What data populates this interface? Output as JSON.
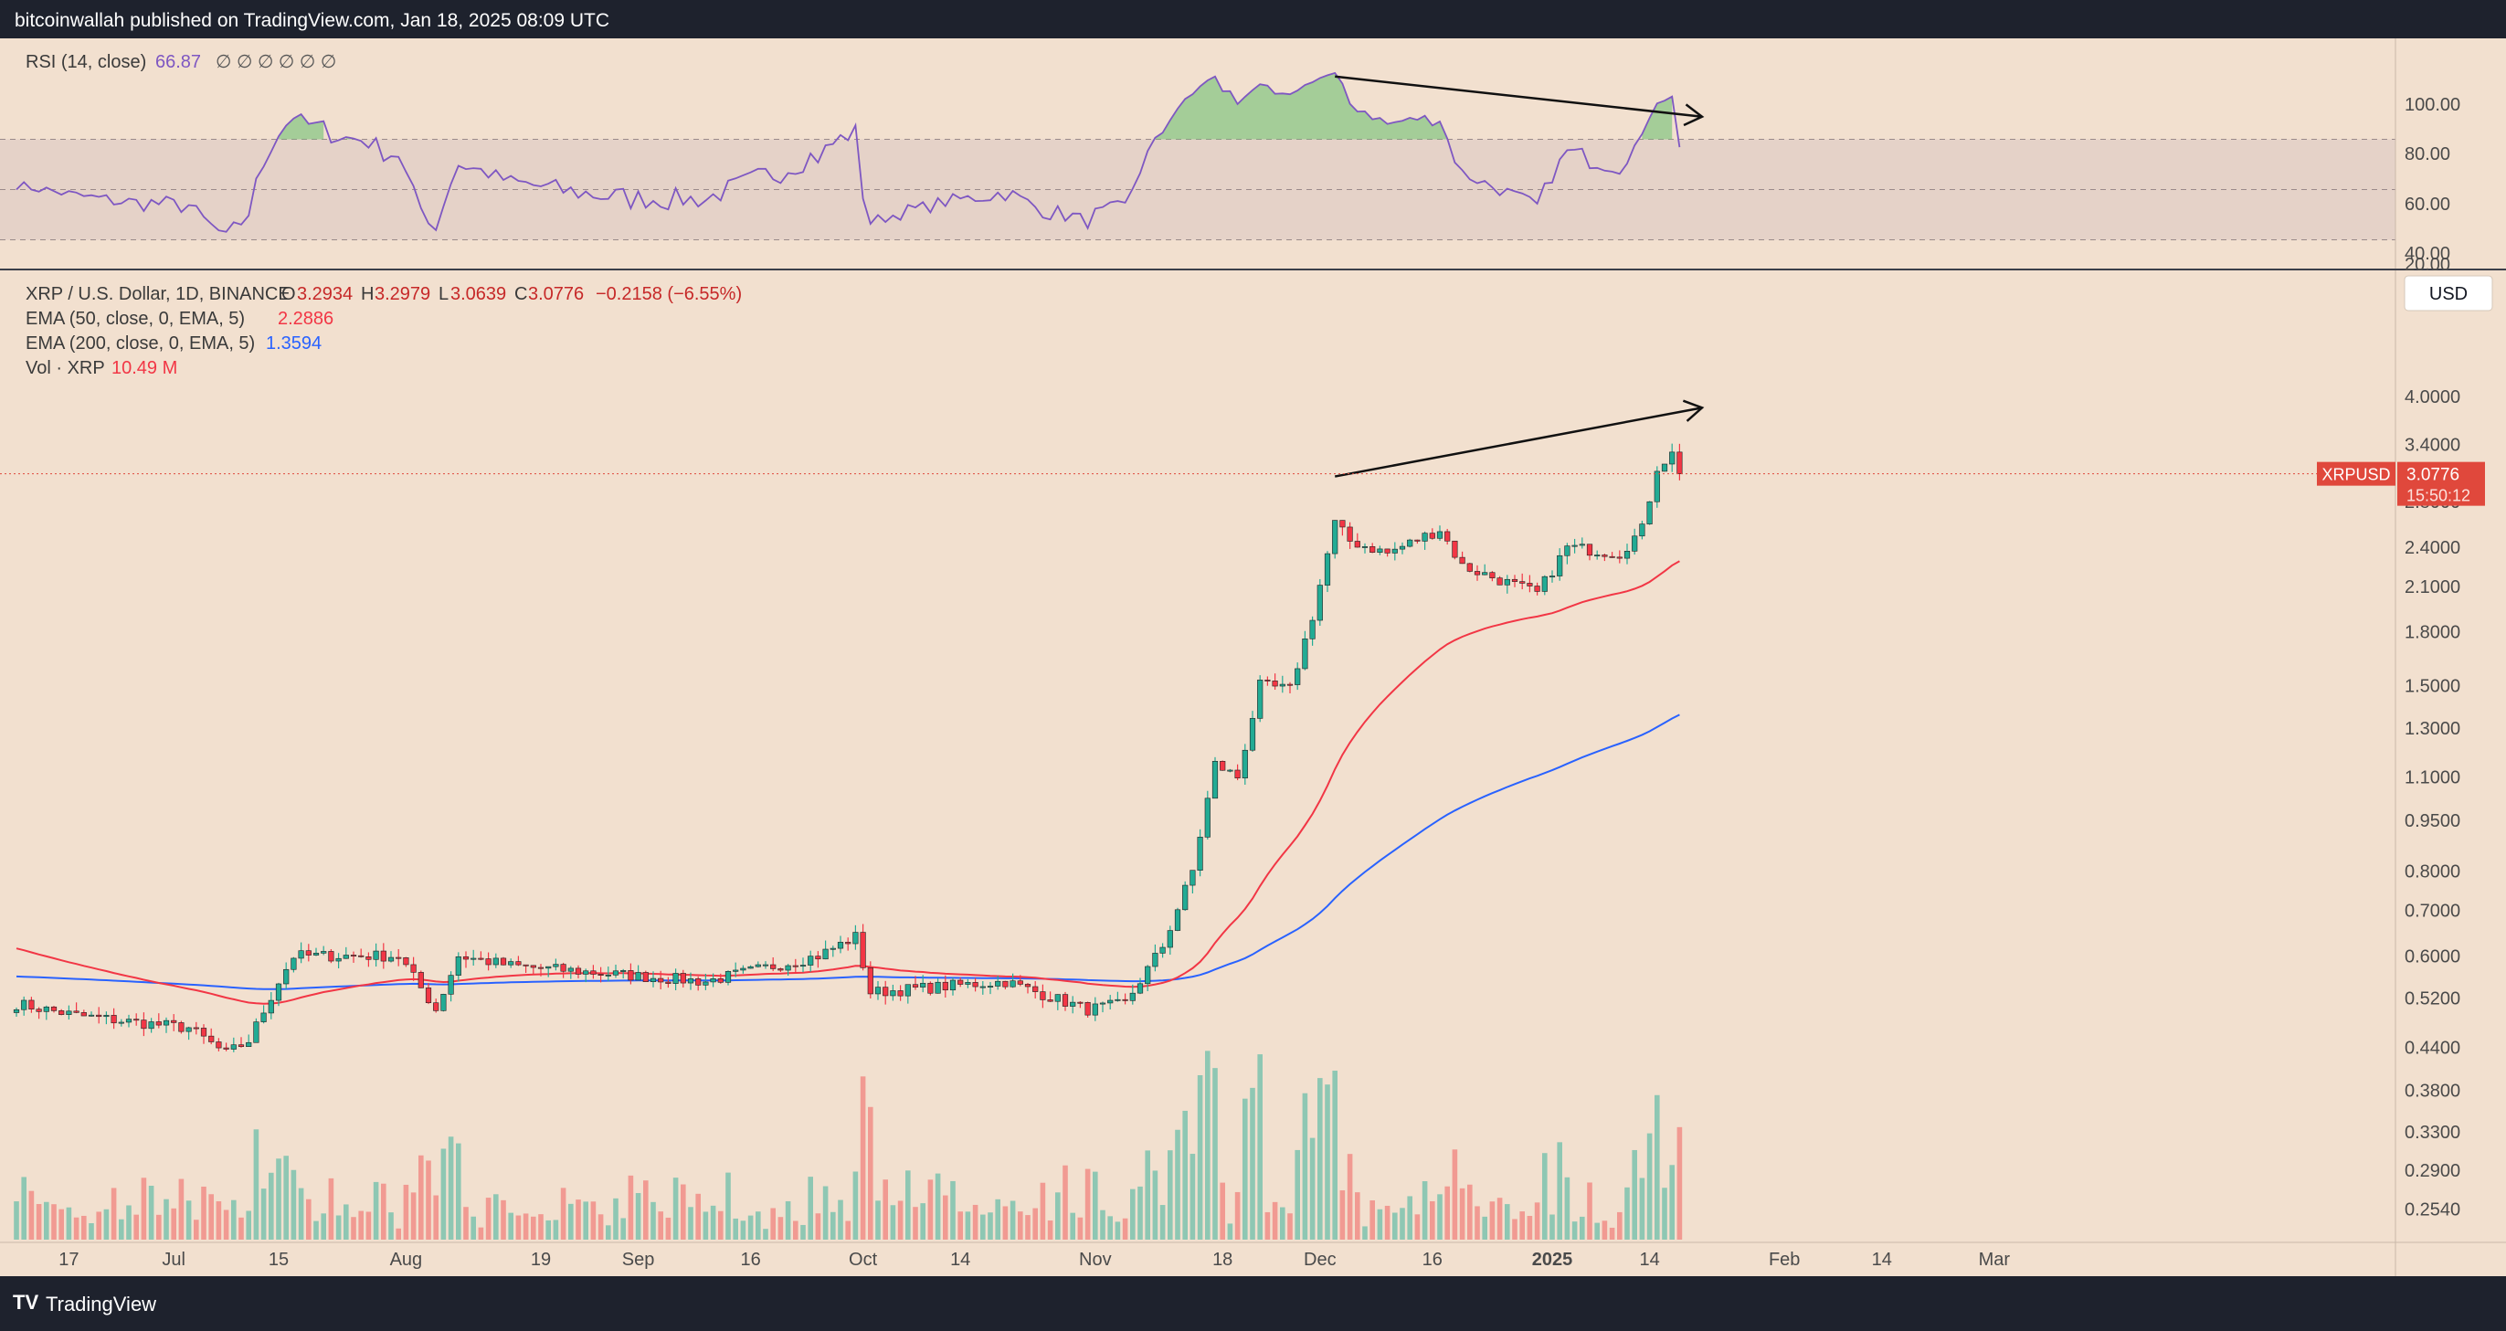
{
  "header": {
    "published": "bitcoinwallah published on TradingView.com, Jan 18, 2025 08:09 UTC"
  },
  "footer": {
    "brand": "TradingView",
    "logo_icon": "tradingview-logo-icon"
  },
  "colors": {
    "background": "#f2e0cf",
    "up": "#22ab94",
    "down": "#f23645",
    "vol_up": "#8ec7b3",
    "vol_down": "#f19a92",
    "ema50": "#f23645",
    "ema200": "#2962ff",
    "rsi": "#7e57c2",
    "rsi_band": "#e5d2c8",
    "price_tag": "#e0483c"
  },
  "rsi_panel": {
    "label": "RSI (14, close)",
    "value": "66.87",
    "nan_marks": "∅ ∅ ∅ ∅ ∅ ∅",
    "y_ticks": [
      "100.00",
      "80.00",
      "60.00",
      "40.00",
      "20.00"
    ],
    "bands": [
      70,
      50,
      30
    ]
  },
  "price_panel": {
    "symbol_line": "XRP / U.S. Dollar, 1D, BINANCE",
    "ohlc": {
      "o_label": "O",
      "o": "3.2934",
      "h_label": "H",
      "h": "3.2979",
      "l_label": "L",
      "l": "3.0639",
      "c_label": "C",
      "c": "3.0776",
      "change": "−0.2158 (−6.55%)"
    },
    "ema50": {
      "label": "EMA (50, close, 0, EMA, 5)",
      "value": "2.2886"
    },
    "ema200": {
      "label": "EMA (200, close, 0, EMA, 5)",
      "value": "1.3594"
    },
    "vol": {
      "label": "Vol · XRP",
      "value": "10.49 M"
    },
    "currency": "USD",
    "price_tag": {
      "symbol": "XRPUSD",
      "price": "3.0776",
      "countdown": "15:50:12"
    },
    "y_ticks": [
      "4.0000",
      "3.4000",
      "2.8000",
      "2.4000",
      "2.1000",
      "1.8000",
      "1.5000",
      "1.3000",
      "1.1000",
      "0.9500",
      "0.8000",
      "0.7000",
      "0.6000",
      "0.5200",
      "0.4400",
      "0.3800",
      "0.3300",
      "0.2900",
      "0.2540"
    ]
  },
  "x_axis": {
    "labels": [
      "17",
      "Jul",
      "15",
      "Aug",
      "19",
      "Sep",
      "16",
      "Oct",
      "14",
      "Nov",
      "18",
      "Dec",
      "16",
      "2025",
      "14",
      "Feb",
      "14",
      "Mar"
    ]
  },
  "chart_data": {
    "type": "candlestick",
    "title": "XRP / U.S. Dollar, 1D, BINANCE",
    "x_range": [
      "2024-06-10",
      "2025-03-20"
    ],
    "price_scale": "log",
    "ylim": [
      0.24,
      4.7
    ],
    "series": [
      {
        "name": "XRPUSD",
        "kind": "candles",
        "ohlc_keypoints": [
          {
            "date": "2024-06-10",
            "price": 0.51
          },
          {
            "date": "2024-06-18",
            "price": 0.49
          },
          {
            "date": "2024-06-25",
            "price": 0.48
          },
          {
            "date": "2024-07-03",
            "price": 0.47
          },
          {
            "date": "2024-07-08",
            "price": 0.43
          },
          {
            "date": "2024-07-11",
            "price": 0.45
          },
          {
            "date": "2024-07-15",
            "price": 0.55
          },
          {
            "date": "2024-07-17",
            "price": 0.6
          },
          {
            "date": "2024-07-31",
            "price": 0.6
          },
          {
            "date": "2024-08-05",
            "price": 0.5
          },
          {
            "date": "2024-08-08",
            "price": 0.6
          },
          {
            "date": "2024-08-15",
            "price": 0.58
          },
          {
            "date": "2024-09-01",
            "price": 0.56
          },
          {
            "date": "2024-09-10",
            "price": 0.55
          },
          {
            "date": "2024-09-25",
            "price": 0.6
          },
          {
            "date": "2024-09-30",
            "price": 0.64
          },
          {
            "date": "2024-10-02",
            "price": 0.53
          },
          {
            "date": "2024-10-20",
            "price": 0.55
          },
          {
            "date": "2024-10-31",
            "price": 0.5
          },
          {
            "date": "2024-11-05",
            "price": 0.51
          },
          {
            "date": "2024-11-10",
            "price": 0.62
          },
          {
            "date": "2024-11-14",
            "price": 0.8
          },
          {
            "date": "2024-11-17",
            "price": 1.15
          },
          {
            "date": "2024-11-20",
            "price": 1.1
          },
          {
            "date": "2024-11-23",
            "price": 1.5
          },
          {
            "date": "2024-11-27",
            "price": 1.48
          },
          {
            "date": "2024-11-30",
            "price": 1.9
          },
          {
            "date": "2024-12-03",
            "price": 2.6
          },
          {
            "date": "2024-12-05",
            "price": 2.45
          },
          {
            "date": "2024-12-10",
            "price": 2.35
          },
          {
            "date": "2024-12-17",
            "price": 2.55
          },
          {
            "date": "2024-12-20",
            "price": 2.25
          },
          {
            "date": "2024-12-30",
            "price": 2.05
          },
          {
            "date": "2025-01-03",
            "price": 2.4
          },
          {
            "date": "2025-01-10",
            "price": 2.35
          },
          {
            "date": "2025-01-13",
            "price": 2.55
          },
          {
            "date": "2025-01-15",
            "price": 3.15
          },
          {
            "date": "2025-01-17",
            "price": 3.29
          },
          {
            "date": "2025-01-18",
            "price": 3.0776
          }
        ]
      },
      {
        "name": "EMA (50, close, 0, EMA, 5)",
        "kind": "line",
        "last": 2.2886
      },
      {
        "name": "EMA (200, close, 0, EMA, 5)",
        "kind": "line",
        "last": 1.3594
      },
      {
        "name": "Vol · XRP",
        "kind": "bars",
        "last": "10.49 M"
      },
      {
        "name": "RSI (14, close)",
        "kind": "line",
        "ylim": [
          20,
          100
        ],
        "last": 66.87
      }
    ],
    "annotations": [
      {
        "type": "trendline-arrow",
        "panel": "rsi",
        "from": {
          "date": "2024-12-03",
          "value": 95
        },
        "to": {
          "date": "2025-01-21",
          "value": 79
        }
      },
      {
        "type": "trendline-arrow",
        "panel": "price",
        "from": {
          "date": "2024-12-03",
          "price": 3.05
        },
        "to": {
          "date": "2025-01-21",
          "price": 3.85
        }
      }
    ],
    "grid": false,
    "legend": "top-left"
  }
}
